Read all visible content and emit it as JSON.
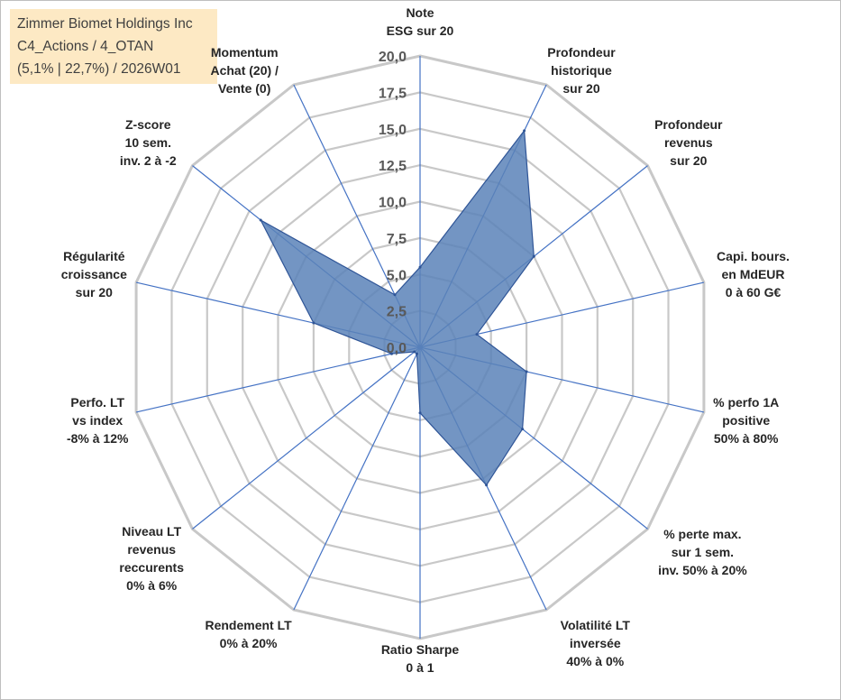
{
  "info_box": {
    "line1": "Zimmer Biomet Holdings Inc",
    "line2": "C4_Actions / 4_OTAN",
    "line3": "(5,1% | 22,7%) / 2026W01"
  },
  "colors": {
    "grid": "#c8c8c8",
    "spokes": "#4472c4",
    "fill": "#5b82b8",
    "outline": "#2f5597"
  },
  "chart_data": {
    "type": "radar",
    "ylim": [
      0,
      20
    ],
    "ticks": [
      "0,0",
      "2,5",
      "5,0",
      "7,5",
      "10,0",
      "12,5",
      "15,0",
      "17,5",
      "20,0"
    ],
    "grid": true,
    "axes": [
      {
        "label": [
          "Note",
          "ESG sur 20"
        ],
        "value": 5.5
      },
      {
        "label": [
          "Profondeur",
          "historique",
          "sur 20"
        ],
        "value": 16.5
      },
      {
        "label": [
          "Profondeur",
          "revenus",
          "sur 20"
        ],
        "value": 10.0
      },
      {
        "label": [
          "Capi. bours.",
          "en MdEUR",
          "0 à 60 G€"
        ],
        "value": 4.0
      },
      {
        "label": [
          "% perfo 1A",
          "positive",
          "50% à 80%"
        ],
        "value": 7.5
      },
      {
        "label": [
          "% perte max.",
          "sur 1 sem.",
          "inv. 50% à 20%"
        ],
        "value": 9.0
      },
      {
        "label": [
          "Volatilité LT",
          "inversée",
          "40% à 0%"
        ],
        "value": 10.5
      },
      {
        "label": [
          "Ratio Sharpe",
          "0 à 1"
        ],
        "value": 4.5
      },
      {
        "label": [
          "Rendement LT",
          "0% à 20%"
        ],
        "value": 0.5
      },
      {
        "label": [
          "Niveau LT",
          "revenus",
          "reccurents",
          "0% à 6%"
        ],
        "value": 0.5
      },
      {
        "label": [
          "Perfo. LT",
          "vs index",
          "-8% à 12%"
        ],
        "value": 2.0
      },
      {
        "label": [
          "Régularité",
          "croissance",
          "sur 20"
        ],
        "value": 7.5
      },
      {
        "label": [
          "Z-score",
          "10 sem.",
          "inv. 2 à -2"
        ],
        "value": 14.0
      },
      {
        "label": [
          "Momentum",
          "Achat (20) /",
          "Vente (0)"
        ],
        "value": 4.0
      }
    ]
  }
}
